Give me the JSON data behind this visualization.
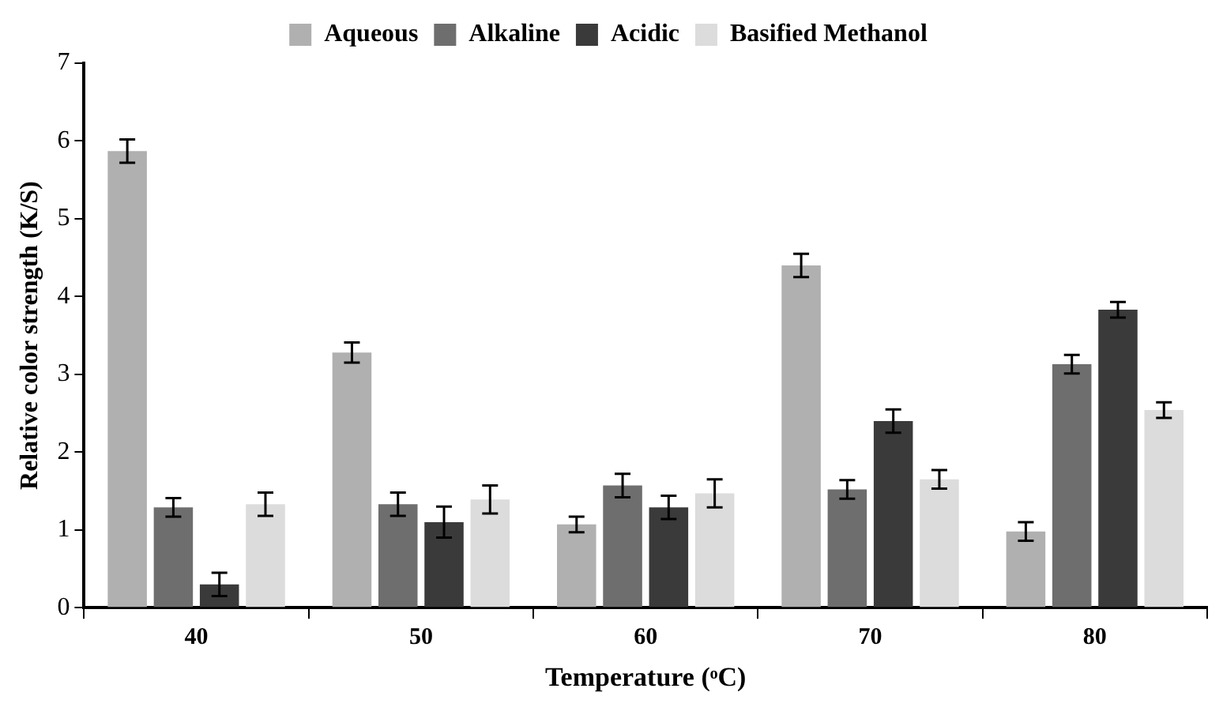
{
  "chart_data": {
    "type": "bar",
    "xlabel": "Temperature (ᵒC)",
    "ylabel": "Relative color strength (K/S)",
    "categories": [
      "40",
      "50",
      "60",
      "70",
      "80"
    ],
    "series": [
      {
        "name": "Aqueous",
        "color": "#b0b0b0",
        "values": [
          5.87,
          3.28,
          1.07,
          4.4,
          0.98
        ],
        "errors": [
          0.15,
          0.13,
          0.1,
          0.15,
          0.12
        ]
      },
      {
        "name": "Alkaline",
        "color": "#6e6e6e",
        "values": [
          1.29,
          1.33,
          1.57,
          1.52,
          3.13
        ],
        "errors": [
          0.12,
          0.15,
          0.15,
          0.12,
          0.12
        ]
      },
      {
        "name": "Acidic",
        "color": "#3a3a3a",
        "values": [
          0.3,
          1.1,
          1.29,
          2.4,
          3.83
        ],
        "errors": [
          0.15,
          0.2,
          0.15,
          0.15,
          0.1
        ]
      },
      {
        "name": "Basified Methanol",
        "color": "#dcdcdc",
        "values": [
          1.33,
          1.39,
          1.47,
          1.65,
          2.54
        ],
        "errors": [
          0.15,
          0.18,
          0.18,
          0.12,
          0.1
        ]
      }
    ],
    "ylim": [
      0,
      7
    ],
    "yticks": [
      0,
      1,
      2,
      3,
      4,
      5,
      6,
      7
    ],
    "grid": false,
    "legend": "top"
  }
}
